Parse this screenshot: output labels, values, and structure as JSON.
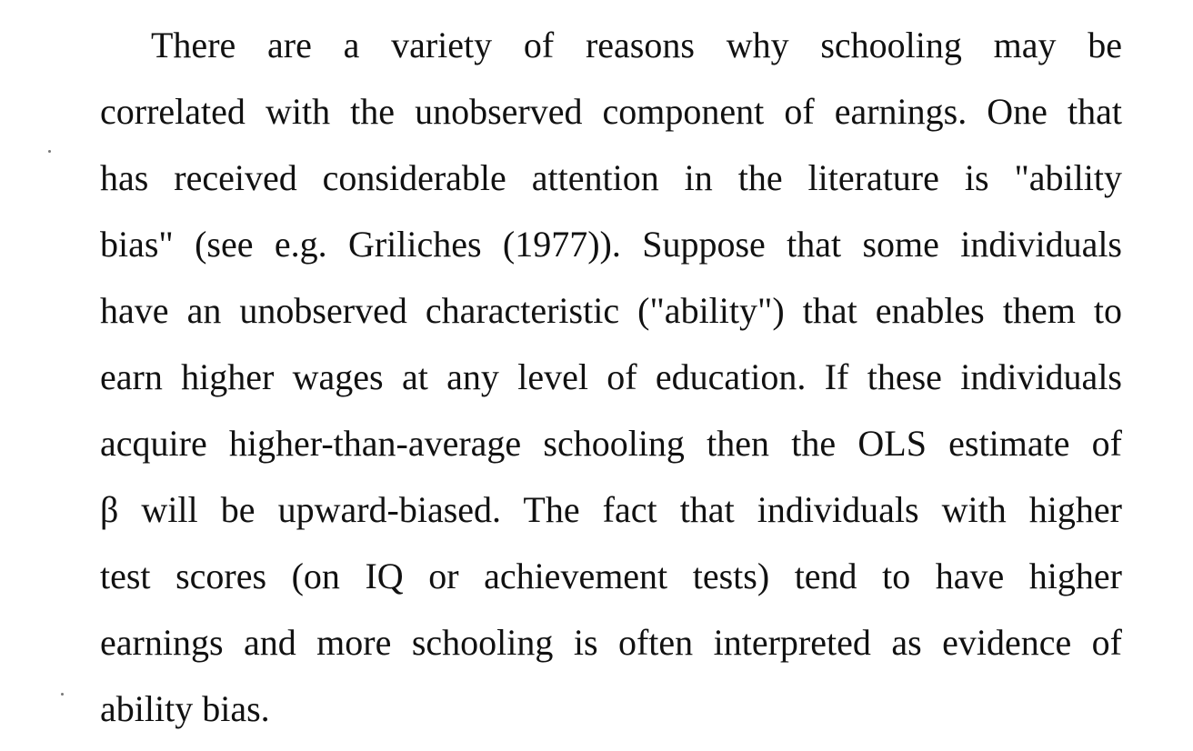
{
  "document": {
    "paragraph_lines": [
      "There are a variety of reasons why schooling may be",
      "correlated with the unobserved component of earnings.  One that",
      "has received considerable attention in the literature is \"ability",
      "bias\" (see e.g. Griliches (1977)).  Suppose that some individuals",
      "have an unobserved characteristic (\"ability\") that enables them to",
      "earn higher wages at any level of education.  If these individuals",
      "acquire higher-than-average schooling then the OLS estimate of",
      "β will be upward-biased.  The fact that individuals with higher",
      "test scores (on IQ or achievement tests) tend to have higher",
      "earnings and more schooling is often interpreted as evidence of",
      "ability bias."
    ]
  }
}
